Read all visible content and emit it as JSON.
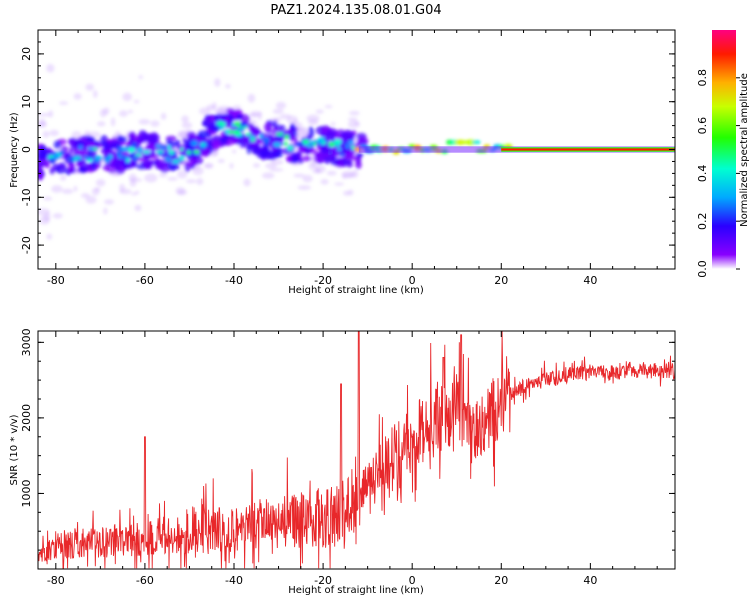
{
  "figure": {
    "title": "PAZ1.2024.135.08.01.G04"
  },
  "chart_data": [
    {
      "type": "heatmap",
      "xlabel": "Height of straight line (km)",
      "ylabel": "Frequency (Hz)",
      "xlim": [
        -84,
        59
      ],
      "ylim": [
        -25,
        25
      ],
      "xticks": [
        -80,
        -60,
        -40,
        -20,
        0,
        20,
        40
      ],
      "yticks": [
        -20,
        -10,
        0,
        10,
        20
      ],
      "colorbar": {
        "label": "Normalized spectral amplitude",
        "range": [
          0,
          1
        ],
        "ticks": [
          0.0,
          0.2,
          0.4,
          0.6,
          0.8
        ],
        "colormap": "gist_rainbow_r"
      },
      "description_values": {
        "scatter_region_x": [
          -84,
          -12
        ],
        "scatter_center_frequency": [
          [
            -82,
            -2
          ],
          [
            -75,
            -1
          ],
          [
            -70,
            -1
          ],
          [
            -65,
            -1
          ],
          [
            -60,
            0
          ],
          [
            -55,
            -1
          ],
          [
            -50,
            -1
          ],
          [
            -45,
            4
          ],
          [
            -40,
            5
          ],
          [
            -35,
            2
          ],
          [
            -30,
            2
          ],
          [
            -25,
            1
          ],
          [
            -20,
            1
          ],
          [
            -15,
            0
          ]
        ],
        "coherent_line_x": [
          -12,
          59
        ],
        "coherent_line_frequency": 0
      }
    },
    {
      "type": "line",
      "xlabel": "Height of straight line (km)",
      "ylabel": "SNR (10 * v/v)",
      "xlim": [
        -84,
        59
      ],
      "ylim": [
        0,
        3150
      ],
      "xticks": [
        -80,
        -60,
        -40,
        -20,
        0,
        20,
        40
      ],
      "yticks": [
        1000,
        2000,
        3000
      ],
      "line_color": "#e8272a",
      "series": [
        {
          "x": [
            -84,
            -80,
            -75,
            -70,
            -65,
            -60,
            -55,
            -50,
            -45,
            -40,
            -35,
            -30,
            -25,
            -20,
            -15,
            -13,
            -12,
            -10,
            -8,
            -5,
            -3,
            -1,
            0,
            2,
            4,
            6,
            8,
            9,
            10,
            11,
            12,
            14,
            16,
            18,
            20,
            22,
            25,
            28,
            30,
            35,
            40,
            45,
            50,
            55,
            59
          ],
          "y": [
            150,
            280,
            310,
            340,
            370,
            380,
            420,
            450,
            480,
            500,
            540,
            580,
            600,
            640,
            700,
            900,
            1000,
            1100,
            1300,
            1450,
            1600,
            1700,
            1750,
            1800,
            1850,
            1900,
            1950,
            2000,
            2100,
            1900,
            1800,
            1750,
            1850,
            2000,
            2150,
            2300,
            2400,
            2450,
            2500,
            2550,
            2600,
            2600,
            2620,
            2620,
            2600
          ]
        }
      ],
      "peaks": [
        {
          "x": -60,
          "y": 1750
        },
        {
          "x": -12,
          "y": 3150
        },
        {
          "x": 11,
          "y": 3100
        },
        {
          "x": 7,
          "y": 2800
        },
        {
          "x": -16,
          "y": 2450
        }
      ]
    }
  ]
}
